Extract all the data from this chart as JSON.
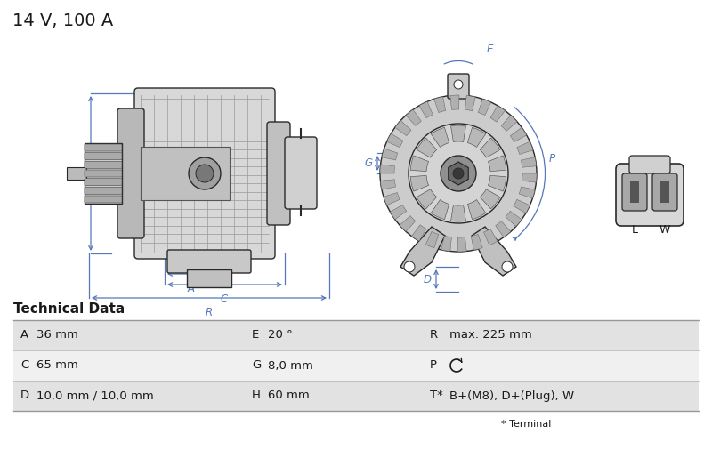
{
  "title": "14 V, 100 A",
  "tech_data_title": "Technical Data",
  "table_rows": [
    {
      "col1_label": "A",
      "col1_value": "36 mm",
      "col2_label": "E",
      "col2_value": "20 °",
      "col3_label": "R",
      "col3_value": "max. 225 mm"
    },
    {
      "col1_label": "C",
      "col1_value": "65 mm",
      "col2_label": "G",
      "col2_value": "8,0 mm",
      "col3_label": "P",
      "col3_value": "↺"
    },
    {
      "col1_label": "D",
      "col1_value": "10,0 mm / 10,0 mm",
      "col2_label": "H",
      "col2_value": "60 mm",
      "col3_label": "T*",
      "col3_value": "B+(M8), D+(Plug), W"
    }
  ],
  "footnote": "* Terminal",
  "bg_color": "#ffffff",
  "table_row_colors": [
    "#e2e2e2",
    "#f0f0f0",
    "#e2e2e2"
  ],
  "blue_color": "#5577bb",
  "dark_color": "#1a1a1a",
  "outline_color": "#2a2a2a",
  "title_fontsize": 14
}
